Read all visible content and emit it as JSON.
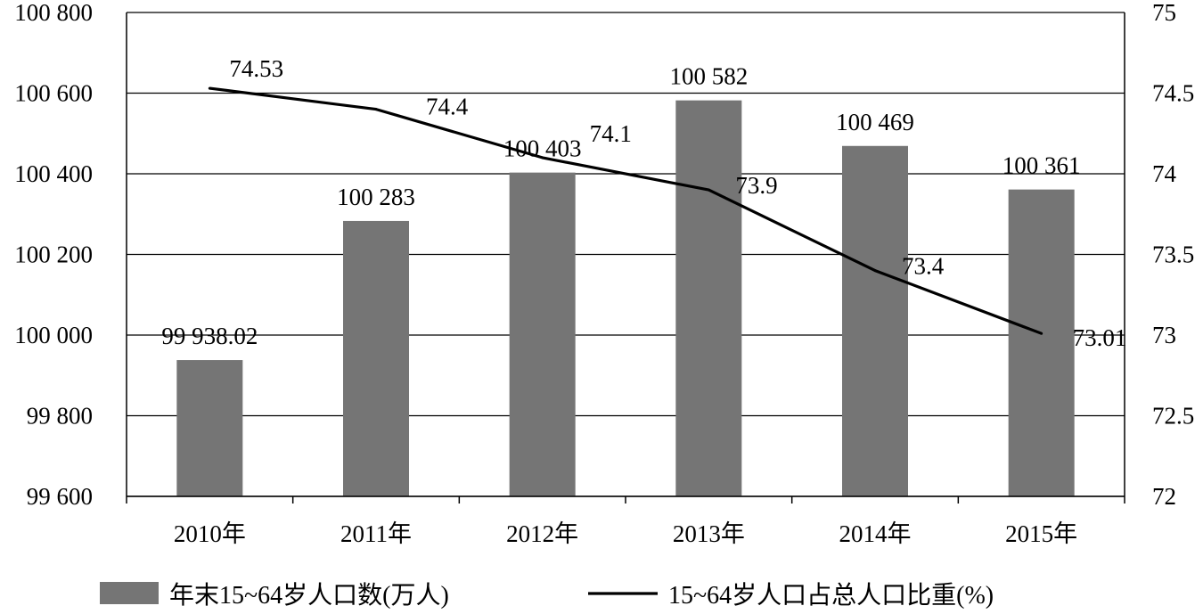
{
  "chart_data": {
    "type": "bar",
    "categories": [
      "2010年",
      "2011年",
      "2012年",
      "2013年",
      "2014年",
      "2015年"
    ],
    "series": [
      {
        "name": "年末15~64岁人口数(万人)",
        "type": "bar",
        "axis": "left",
        "color": "#757575",
        "values": [
          99938.02,
          100283,
          100403,
          100582,
          100469,
          100361
        ],
        "labels": [
          "99 938.02",
          "100 283",
          "100 403",
          "100 582",
          "100 469",
          "100 361"
        ]
      },
      {
        "name": "15~64岁人口占总人口比重(%)",
        "type": "line",
        "axis": "right",
        "color": "#000000",
        "values": [
          74.53,
          74.4,
          74.1,
          73.9,
          73.4,
          73.01
        ],
        "labels": [
          "74.53",
          "74.4",
          "74.1",
          "73.9",
          "73.4",
          "73.01"
        ]
      }
    ],
    "y_left": {
      "range": [
        99600,
        100800
      ],
      "ticks": [
        99600,
        99800,
        100000,
        100200,
        100400,
        100600,
        100800
      ],
      "tick_labels": [
        "99 600",
        "99 800",
        "100 000",
        "100 200",
        "100 400",
        "100 600",
        "100 800"
      ]
    },
    "y_right": {
      "range": [
        72,
        75
      ],
      "ticks": [
        72,
        72.5,
        73,
        73.5,
        74,
        74.5,
        75
      ],
      "tick_labels": [
        "72",
        "72.5",
        "73",
        "73.5",
        "74",
        "74.5",
        "75"
      ]
    },
    "grid": true,
    "legend_position": "bottom"
  }
}
